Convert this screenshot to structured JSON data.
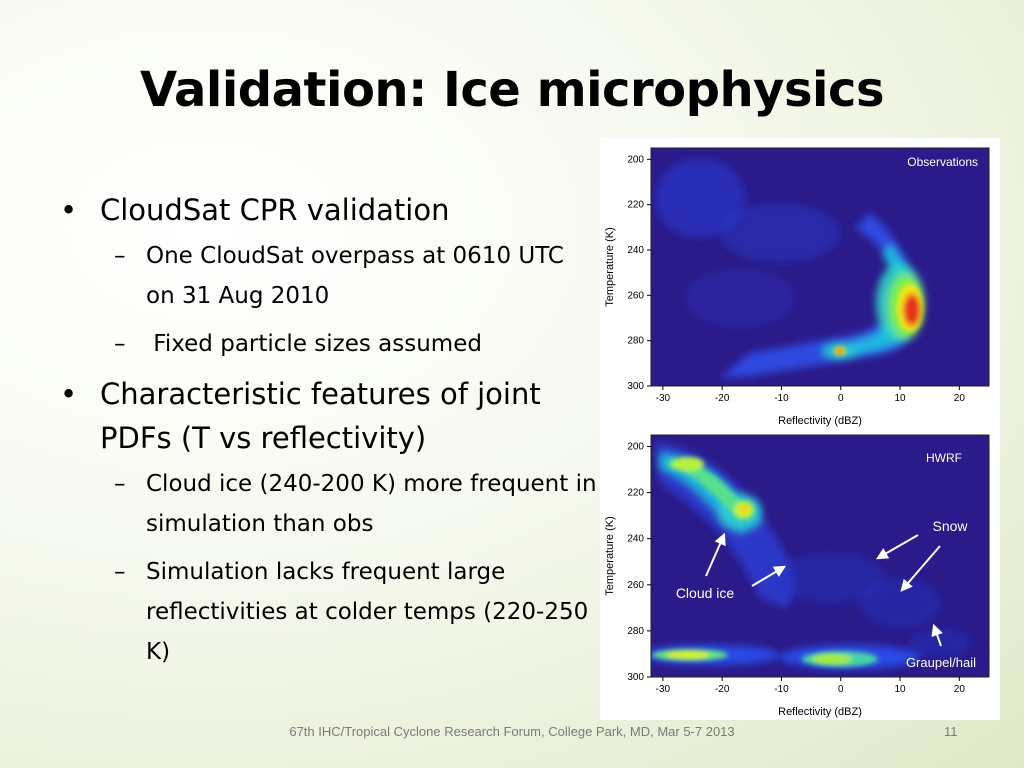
{
  "slide": {
    "title": "Validation: Ice microphysics",
    "bullets": [
      {
        "text": "CloudSat CPR validation",
        "sub": [
          "One CloudSat overpass at 0610 UTC on 31 Aug 2010",
          " Fixed particle sizes assumed"
        ]
      },
      {
        "text": "Characteristic features of joint PDFs (T vs reflectivity)",
        "sub": [
          "Cloud ice (240-200 K) more frequent in simulation than obs",
          "Simulation lacks frequent large reflectivities at colder temps (220-250 K)"
        ]
      }
    ],
    "footer": "67th IHC/Tropical Cyclone Research Forum, College Park, MD, Mar 5-7 2013",
    "page_number": "11"
  },
  "chart_data": [
    {
      "type": "heatmap",
      "panel_label": "Observations",
      "xlabel": "Reflectivity (dBZ)",
      "ylabel": "Temperature (K)",
      "xlim": [
        -32,
        25
      ],
      "ylim": [
        300,
        195
      ],
      "xticks": [
        -30,
        -20,
        -10,
        0,
        10,
        20
      ],
      "yticks": [
        200,
        220,
        240,
        260,
        280,
        300
      ],
      "background_color": "#2a1a8a",
      "density_features": [
        {
          "x": 12,
          "y": 262,
          "level": 1.0
        },
        {
          "x": 10,
          "y": 250,
          "level": 0.6
        },
        {
          "x": 1,
          "y": 284,
          "level": 0.65
        },
        {
          "x": -10,
          "y": 285,
          "level": 0.3
        },
        {
          "x": -22,
          "y": 212,
          "level": 0.25
        }
      ]
    },
    {
      "type": "heatmap",
      "panel_label": "HWRF",
      "xlabel": "Reflectivity (dBZ)",
      "ylabel": "Temperature (K)",
      "xlim": [
        -32,
        25
      ],
      "ylim": [
        300,
        195
      ],
      "xticks": [
        -30,
        -20,
        -10,
        0,
        10,
        20
      ],
      "yticks": [
        200,
        220,
        240,
        260,
        280,
        300
      ],
      "background_color": "#2a1a8a",
      "density_features": [
        {
          "x": -15,
          "y": 224,
          "level": 0.8
        },
        {
          "x": -27,
          "y": 204,
          "level": 0.7
        },
        {
          "x": -25,
          "y": 290,
          "level": 0.6
        },
        {
          "x": -2,
          "y": 291,
          "level": 0.55
        }
      ],
      "annotations": [
        "Snow",
        "Cloud ice",
        "Graupel/hail"
      ]
    }
  ]
}
